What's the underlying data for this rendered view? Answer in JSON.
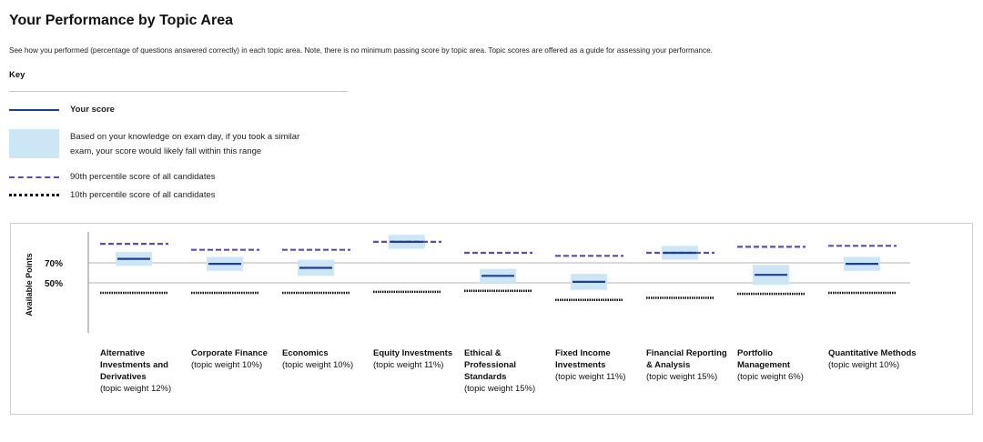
{
  "header": {
    "title": "Your Performance by Topic Area",
    "description": "See how you performed (percentage of questions answered correctly) in each topic area. Note, there is no minimum passing score by topic area. Topic scores are offered as a guide for assessing your performance."
  },
  "key": {
    "heading": "Key",
    "your_score": "Your score",
    "range_line1": "Based on your knowledge on exam day, if you took a similar",
    "range_line2": "exam, your score would likely fall within this range",
    "p90": "90th percentile score of all candidates",
    "p10": "10th percentile score of all candidates"
  },
  "colors": {
    "score": "#1f3f95",
    "range": "#cde6f6",
    "p90": "#5b4ea8",
    "p10": "#111111",
    "grid": "#9a9a9a"
  },
  "chart_data": {
    "type": "range-bar",
    "ylabel": "Available Points",
    "yticks": [
      {
        "value": 70,
        "label": "70%"
      },
      {
        "value": 50,
        "label": "50%"
      }
    ],
    "categories": [
      {
        "name": "Alternative Investments and Derivatives",
        "weight": "(topic weight 12%)",
        "score": 74,
        "range": [
          67,
          81
        ],
        "p90": 89,
        "p10": 40
      },
      {
        "name": "Corporate Finance",
        "weight": "(topic weight 10%)",
        "score": 69,
        "range": [
          62,
          76
        ],
        "p90": 83,
        "p10": 40
      },
      {
        "name": "Economics",
        "weight": "(topic weight 10%)",
        "score": 65,
        "range": [
          57,
          73
        ],
        "p90": 83,
        "p10": 40
      },
      {
        "name": "Equity Investments",
        "weight": "(topic weight 11%)",
        "score": 91,
        "range": [
          84,
          98
        ],
        "p90": 91,
        "p10": 41
      },
      {
        "name": "Ethical & Professional Standards",
        "weight": "(topic weight 15%)",
        "score": 57,
        "range": [
          50,
          64
        ],
        "p90": 80,
        "p10": 42
      },
      {
        "name": "Fixed Income Investments",
        "weight": "(topic weight 11%)",
        "score": 51,
        "range": [
          43,
          59
        ],
        "p90": 77,
        "p10": 33
      },
      {
        "name": "Financial Reporting & Analysis",
        "weight": "(topic weight 15%)",
        "score": 80,
        "range": [
          73,
          87
        ],
        "p90": 80,
        "p10": 35
      },
      {
        "name": "Portfolio Management",
        "weight": "(topic weight 6%)",
        "score": 58,
        "range": [
          48,
          68
        ],
        "p90": 86,
        "p10": 39
      },
      {
        "name": "Quantitative Methods",
        "weight": "(topic weight 10%)",
        "score": 69,
        "range": [
          62,
          76
        ],
        "p90": 87,
        "p10": 40
      }
    ]
  }
}
